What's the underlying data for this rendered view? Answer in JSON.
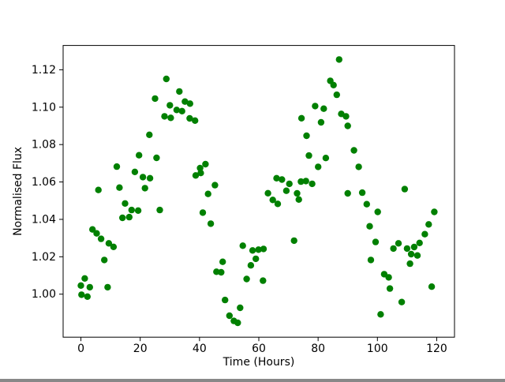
{
  "figure": {
    "title": "",
    "background_color": "#ffffff",
    "frame_color": "#000000"
  },
  "chart_data": {
    "type": "scatter",
    "title": "",
    "xlabel": "Time (Hours)",
    "ylabel": "Normalised Flux",
    "marker_color": "#008000",
    "marker_shape": "circle",
    "grid": false,
    "legend": "none",
    "xlim": [
      -6,
      126
    ],
    "ylim": [
      0.977,
      1.133
    ],
    "x_ticks": [
      0,
      20,
      40,
      60,
      80,
      100,
      120
    ],
    "y_tick_labels": [
      "1.00",
      "1.02",
      "1.04",
      "1.06",
      "1.08",
      "1.10",
      "1.12"
    ],
    "points": [
      [
        0.0,
        1.0046
      ],
      [
        0.2,
        0.9997
      ],
      [
        1.3,
        1.0084
      ],
      [
        2.2,
        0.9987
      ],
      [
        3.0,
        1.0037
      ],
      [
        3.9,
        1.0346
      ],
      [
        5.3,
        1.0325
      ],
      [
        5.9,
        1.0557
      ],
      [
        6.8,
        1.0296
      ],
      [
        7.9,
        1.0183
      ],
      [
        9.0,
        1.0037
      ],
      [
        9.4,
        1.0272
      ],
      [
        11.0,
        1.0253
      ],
      [
        12.1,
        1.0682
      ],
      [
        13.0,
        1.057
      ],
      [
        14.0,
        1.0408
      ],
      [
        14.9,
        1.0485
      ],
      [
        16.3,
        1.0412
      ],
      [
        17.1,
        1.045
      ],
      [
        18.2,
        1.0654
      ],
      [
        19.3,
        1.0447
      ],
      [
        19.6,
        1.0743
      ],
      [
        20.9,
        1.0626
      ],
      [
        21.6,
        1.0567
      ],
      [
        23.1,
        1.0852
      ],
      [
        23.3,
        1.062
      ],
      [
        25.0,
        1.1046
      ],
      [
        25.5,
        1.0729
      ],
      [
        26.6,
        1.045
      ],
      [
        28.2,
        1.0951
      ],
      [
        28.8,
        1.1151
      ],
      [
        30.0,
        1.101
      ],
      [
        30.3,
        1.0943
      ],
      [
        32.3,
        1.0985
      ],
      [
        33.2,
        1.1084
      ],
      [
        34.1,
        1.0979
      ],
      [
        35.1,
        1.103
      ],
      [
        36.7,
        1.094
      ],
      [
        36.8,
        1.1019
      ],
      [
        38.5,
        1.0928
      ],
      [
        38.7,
        1.0635
      ],
      [
        40.2,
        1.0674
      ],
      [
        40.4,
        1.0648
      ],
      [
        41.1,
        1.0436
      ],
      [
        42.0,
        1.0695
      ],
      [
        42.9,
        1.0536
      ],
      [
        43.8,
        1.0377
      ],
      [
        45.2,
        1.0583
      ],
      [
        45.7,
        1.012
      ],
      [
        47.3,
        1.0117
      ],
      [
        47.8,
        1.0173
      ],
      [
        48.6,
        0.9969
      ],
      [
        50.1,
        0.9885
      ],
      [
        51.6,
        0.9857
      ],
      [
        52.9,
        0.9847
      ],
      [
        53.7,
        0.9927
      ],
      [
        54.6,
        1.0259
      ],
      [
        55.9,
        1.0081
      ],
      [
        57.3,
        1.0154
      ],
      [
        57.9,
        1.0234
      ],
      [
        59.0,
        1.0189
      ],
      [
        59.9,
        1.0238
      ],
      [
        61.4,
        1.0072
      ],
      [
        61.6,
        1.0242
      ],
      [
        63.1,
        1.054
      ],
      [
        64.7,
        1.0504
      ],
      [
        66.0,
        1.062
      ],
      [
        66.4,
        1.0483
      ],
      [
        67.8,
        1.0613
      ],
      [
        69.3,
        1.0553
      ],
      [
        70.3,
        1.059
      ],
      [
        71.9,
        1.0286
      ],
      [
        72.9,
        1.0539
      ],
      [
        73.5,
        1.0506
      ],
      [
        74.2,
        1.0602
      ],
      [
        74.4,
        1.0941
      ],
      [
        75.9,
        1.0605
      ],
      [
        76.1,
        1.0847
      ],
      [
        76.9,
        1.0741
      ],
      [
        78.0,
        1.059
      ],
      [
        79.0,
        1.1006
      ],
      [
        80.0,
        1.0681
      ],
      [
        81.0,
        1.0919
      ],
      [
        81.9,
        1.0992
      ],
      [
        82.6,
        1.0728
      ],
      [
        84.1,
        1.1141
      ],
      [
        85.2,
        1.1118
      ],
      [
        86.3,
        1.1066
      ],
      [
        87.1,
        1.1255
      ],
      [
        87.8,
        1.0964
      ],
      [
        89.4,
        1.0951
      ],
      [
        90.0,
        1.09
      ],
      [
        90.0,
        1.0539
      ],
      [
        92.1,
        1.0769
      ],
      [
        93.7,
        1.0681
      ],
      [
        94.9,
        1.0543
      ],
      [
        96.4,
        1.0481
      ],
      [
        97.4,
        1.0363
      ],
      [
        97.8,
        1.0183
      ],
      [
        99.4,
        1.0279
      ],
      [
        100.1,
        1.044
      ],
      [
        101.1,
        0.9892
      ],
      [
        102.3,
        1.0107
      ],
      [
        103.8,
        1.009
      ],
      [
        104.2,
        1.003
      ],
      [
        105.4,
        1.0244
      ],
      [
        107.1,
        1.0272
      ],
      [
        108.2,
        0.9958
      ],
      [
        109.2,
        1.0562
      ],
      [
        110.0,
        1.0244
      ],
      [
        111.0,
        1.0163
      ],
      [
        111.4,
        1.0214
      ],
      [
        112.4,
        1.0252
      ],
      [
        113.5,
        1.0207
      ],
      [
        114.2,
        1.0274
      ],
      [
        116.0,
        1.0321
      ],
      [
        117.3,
        1.0373
      ],
      [
        118.3,
        1.004
      ],
      [
        119.2,
        1.044
      ]
    ]
  }
}
